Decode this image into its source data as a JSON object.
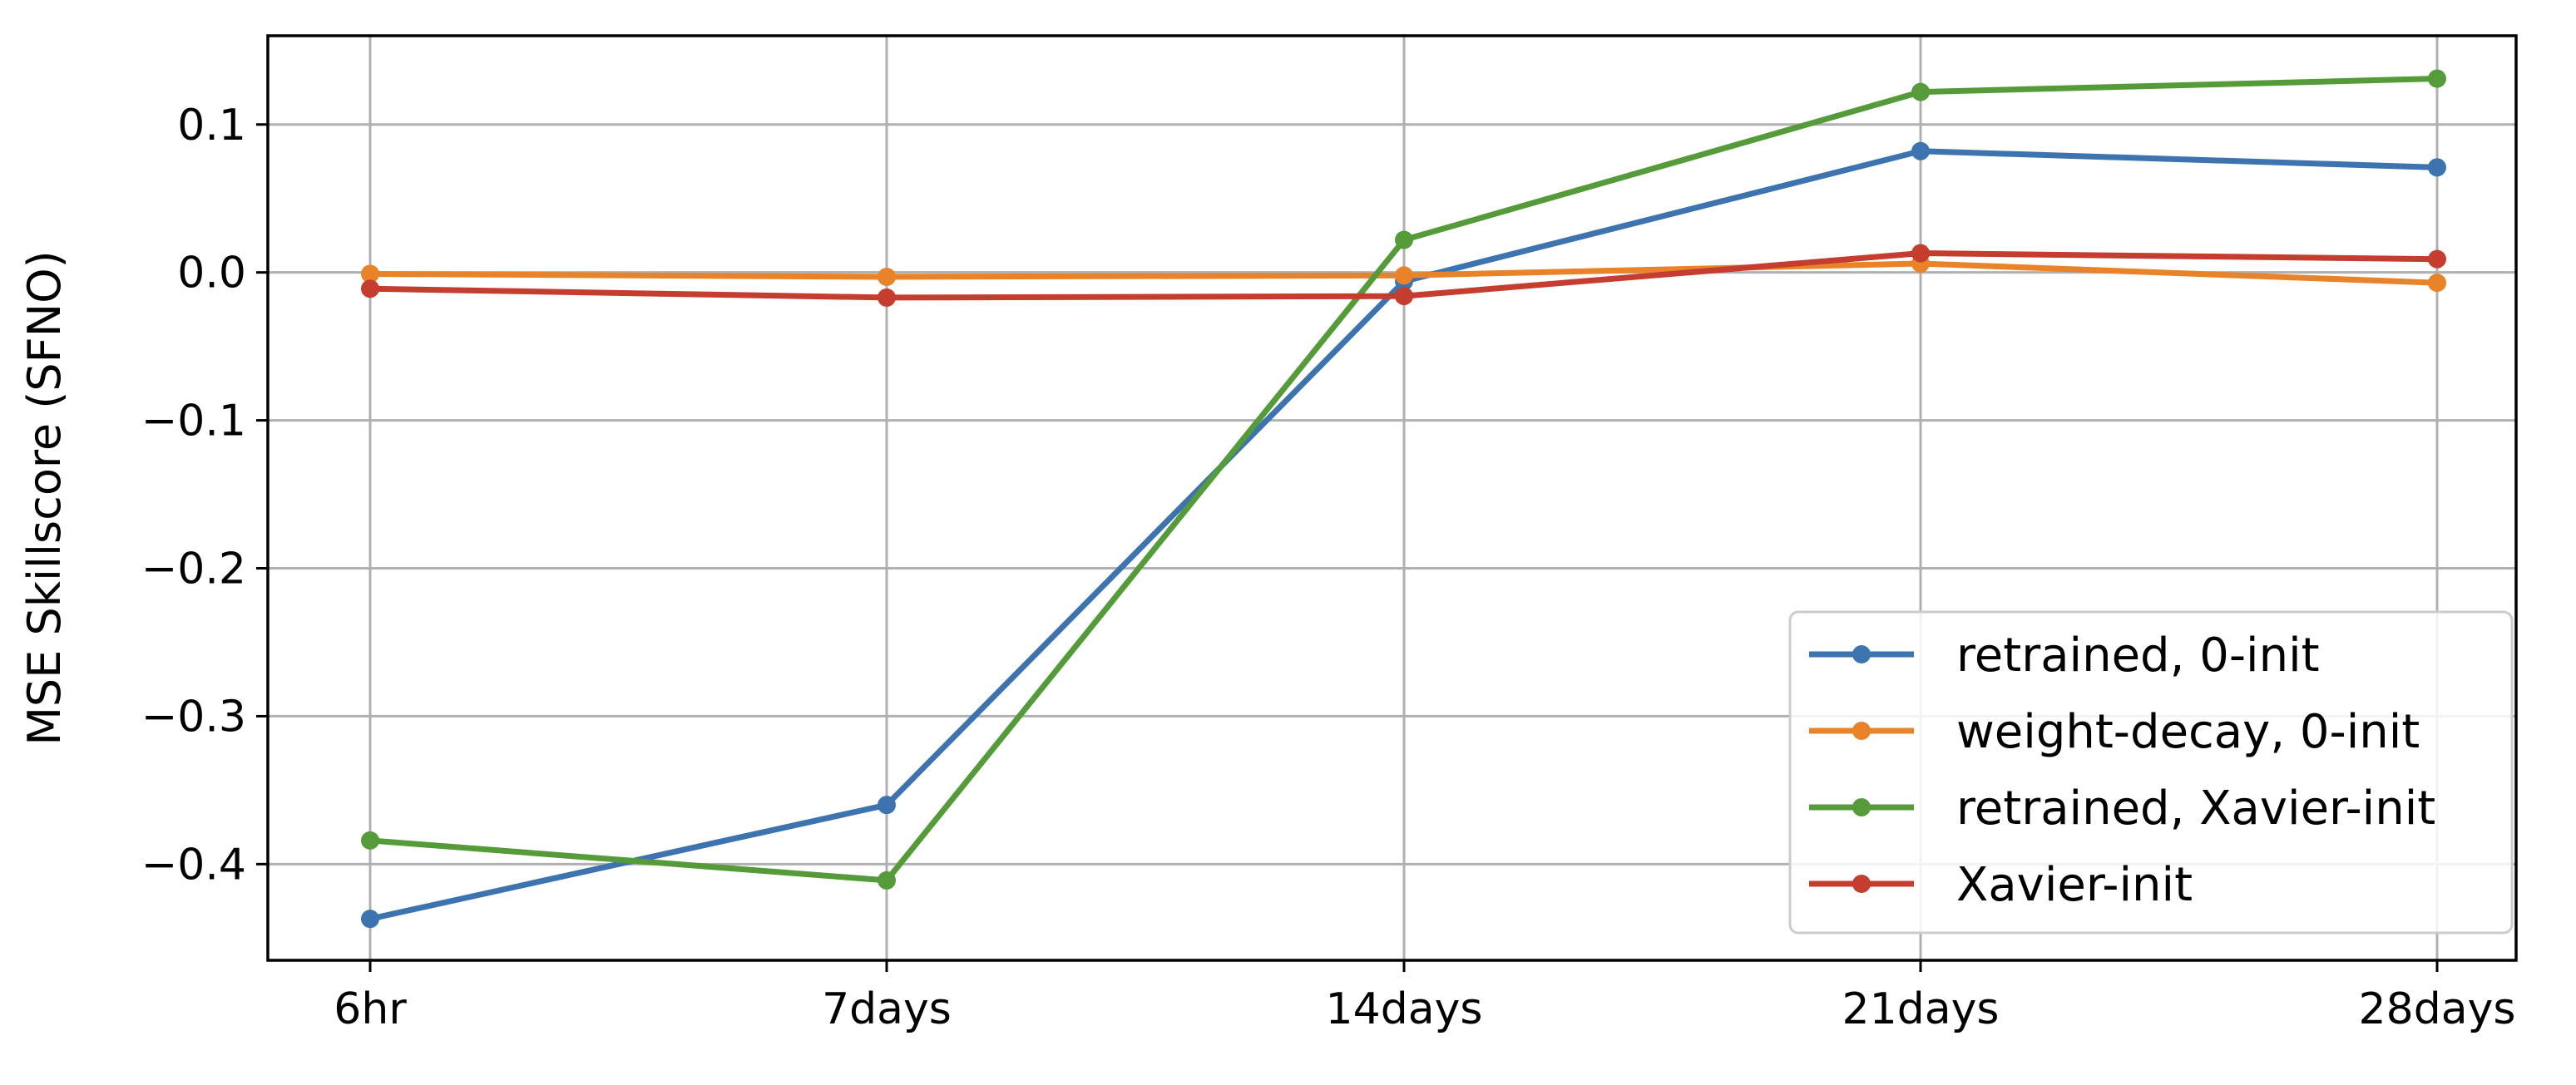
{
  "chart_data": {
    "type": "line",
    "title": "",
    "xlabel": "",
    "ylabel": "MSE Skillscore (SFNO)",
    "categories": [
      "6hr",
      "7days",
      "14days",
      "21days",
      "28days"
    ],
    "ylim": [
      -0.465,
      0.16
    ],
    "yticks": [
      0.1,
      0.0,
      -0.1,
      -0.2,
      -0.3,
      -0.4
    ],
    "ytick_labels": [
      "0.1",
      "0.0",
      "−0.1",
      "−0.2",
      "−0.3",
      "−0.4"
    ],
    "grid": true,
    "legend_position": "lower-right",
    "series": [
      {
        "name": "retrained, 0-init",
        "color": "#3d73af",
        "values": [
          -0.437,
          -0.36,
          -0.006,
          0.082,
          0.071
        ]
      },
      {
        "name": "weight-decay, 0-init",
        "color": "#e8832a",
        "values": [
          -0.001,
          -0.003,
          -0.002,
          0.006,
          -0.007
        ]
      },
      {
        "name": "retrained, Xavier-init",
        "color": "#559b3a",
        "values": [
          -0.384,
          -0.411,
          0.022,
          0.122,
          0.131
        ]
      },
      {
        "name": "Xavier-init",
        "color": "#c43d2f",
        "values": [
          -0.011,
          -0.017,
          -0.016,
          0.013,
          0.009
        ]
      }
    ]
  }
}
